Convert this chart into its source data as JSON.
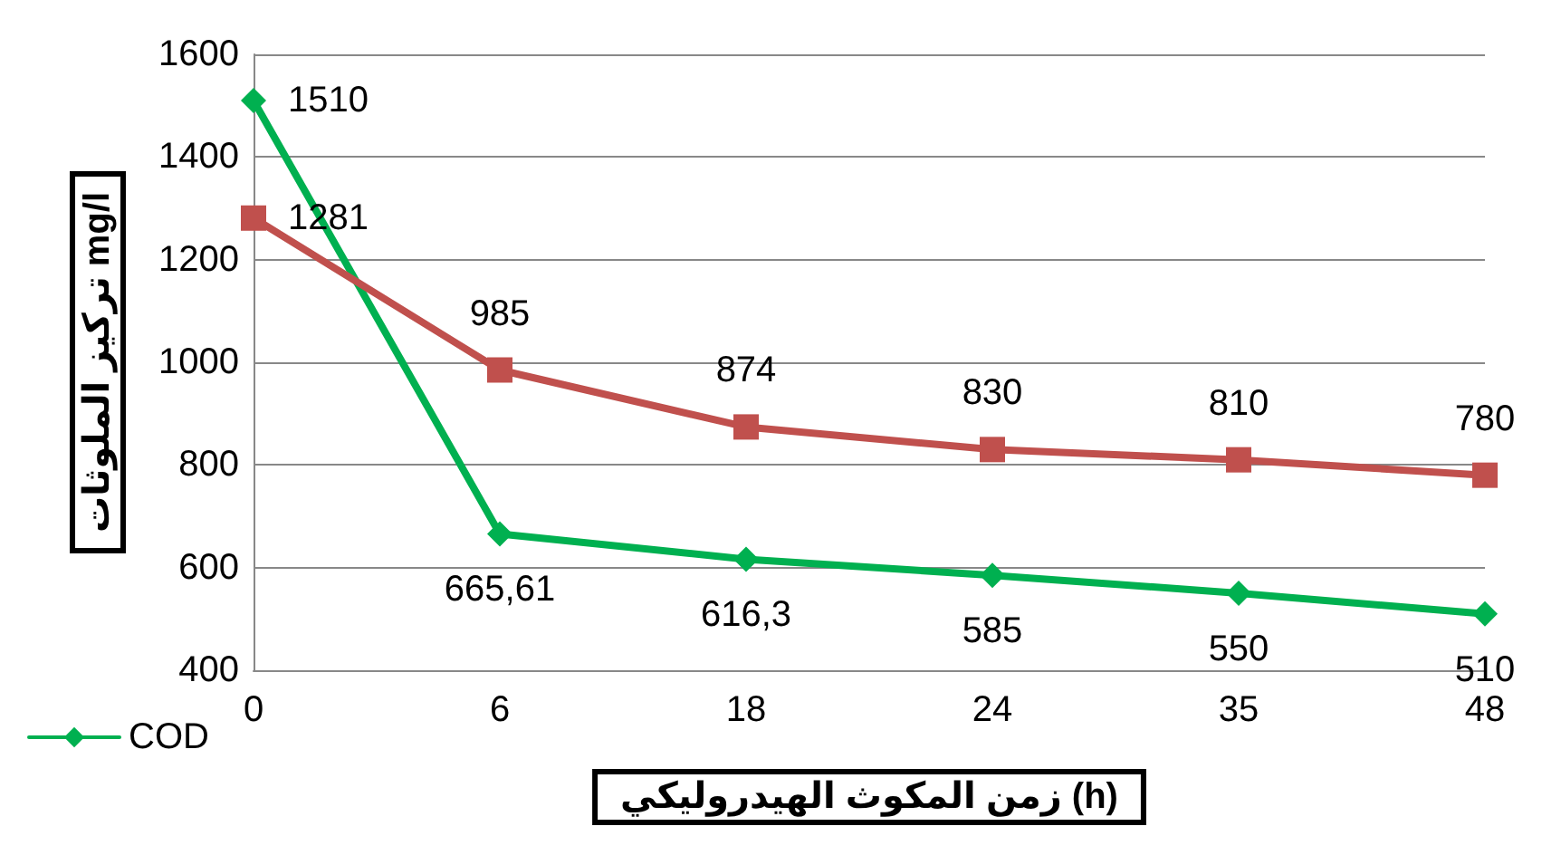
{
  "chart_data": {
    "type": "line",
    "categories": [
      "0",
      "6",
      "18",
      "24",
      "35",
      "48"
    ],
    "series": [
      {
        "name": "COD",
        "color": "#00b050",
        "marker": "diamond",
        "values": [
          1510,
          665.61,
          616.3,
          585,
          550,
          510
        ],
        "value_labels": [
          "1510",
          "665,61",
          "616,3",
          "585",
          "550",
          "510"
        ]
      },
      {
        "color": "#c0504d",
        "marker": "square",
        "values": [
          1281,
          985,
          874,
          830,
          810,
          780
        ],
        "value_labels": [
          "1281",
          "985",
          "874",
          "830",
          "810",
          "780"
        ]
      }
    ],
    "xlabel": "زمن المكوث الهيدروليكي (h)",
    "ylabel": "تركيز الملوثات mg/l",
    "ylim": [
      400,
      1600
    ],
    "yticks": [
      400,
      600,
      800,
      1000,
      1200,
      1400,
      1600
    ],
    "grid": "y",
    "legend": "bottom left",
    "line_style": "solid"
  }
}
